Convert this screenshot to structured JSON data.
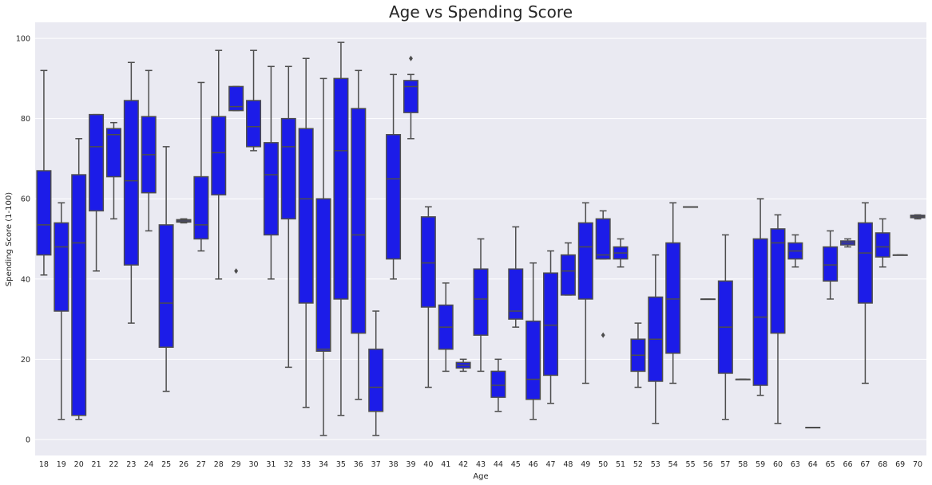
{
  "chart_data": {
    "type": "box",
    "title": "Age vs Spending Score",
    "xlabel": "Age",
    "ylabel": "Spending Score (1-100)",
    "ylim": [
      -4,
      104
    ],
    "yticks": [
      0,
      20,
      40,
      60,
      80,
      100
    ],
    "grid": true,
    "box_color": "#1c1ce8",
    "line_color": "#4d4d4d",
    "background": "#eaeaf2",
    "categories": [
      "18",
      "19",
      "20",
      "21",
      "22",
      "23",
      "24",
      "25",
      "26",
      "27",
      "28",
      "29",
      "30",
      "31",
      "32",
      "33",
      "34",
      "35",
      "36",
      "37",
      "38",
      "39",
      "40",
      "41",
      "42",
      "43",
      "44",
      "45",
      "46",
      "47",
      "48",
      "49",
      "50",
      "51",
      "52",
      "53",
      "54",
      "55",
      "56",
      "57",
      "58",
      "59",
      "60",
      "63",
      "64",
      "65",
      "66",
      "67",
      "68",
      "69",
      "70"
    ],
    "boxes": [
      {
        "age": "18",
        "min": 41,
        "q1": 46,
        "median": 53.5,
        "q3": 67,
        "max": 92,
        "outliers": []
      },
      {
        "age": "19",
        "min": 5,
        "q1": 32,
        "median": 48,
        "q3": 54,
        "max": 59,
        "outliers": []
      },
      {
        "age": "20",
        "min": 5,
        "q1": 6,
        "median": 49,
        "q3": 66,
        "max": 75,
        "outliers": []
      },
      {
        "age": "21",
        "min": 42,
        "q1": 57,
        "median": 73,
        "q3": 81,
        "max": 81,
        "outliers": []
      },
      {
        "age": "22",
        "min": 55,
        "q1": 65.5,
        "median": 76,
        "q3": 77.5,
        "max": 79,
        "outliers": []
      },
      {
        "age": "23",
        "min": 29,
        "q1": 43.5,
        "median": 64.5,
        "q3": 84.5,
        "max": 94,
        "outliers": []
      },
      {
        "age": "24",
        "min": 52,
        "q1": 61.5,
        "median": 71,
        "q3": 80.5,
        "max": 92,
        "outliers": []
      },
      {
        "age": "25",
        "min": 12,
        "q1": 23,
        "median": 34,
        "q3": 53.5,
        "max": 73,
        "outliers": []
      },
      {
        "age": "26",
        "min": 54,
        "q1": 54.2,
        "median": 54.5,
        "q3": 54.8,
        "max": 55,
        "outliers": []
      },
      {
        "age": "27",
        "min": 47,
        "q1": 50,
        "median": 53.5,
        "q3": 65.5,
        "max": 89,
        "outliers": []
      },
      {
        "age": "28",
        "min": 40,
        "q1": 61,
        "median": 71.5,
        "q3": 80.5,
        "max": 97,
        "outliers": []
      },
      {
        "age": "29",
        "min": 82,
        "q1": 82,
        "median": 83,
        "q3": 88,
        "max": 88,
        "outliers": [
          42
        ]
      },
      {
        "age": "30",
        "min": 72,
        "q1": 73,
        "median": 78,
        "q3": 84.5,
        "max": 97,
        "outliers": []
      },
      {
        "age": "31",
        "min": 40,
        "q1": 51,
        "median": 66,
        "q3": 74,
        "max": 93,
        "outliers": []
      },
      {
        "age": "32",
        "min": 18,
        "q1": 55,
        "median": 73,
        "q3": 80,
        "max": 93,
        "outliers": []
      },
      {
        "age": "33",
        "min": 8,
        "q1": 34,
        "median": 60,
        "q3": 77.5,
        "max": 95,
        "outliers": []
      },
      {
        "age": "34",
        "min": 1,
        "q1": 22,
        "median": 22.5,
        "q3": 60,
        "max": 90,
        "outliers": []
      },
      {
        "age": "35",
        "min": 6,
        "q1": 35,
        "median": 72,
        "q3": 90,
        "max": 99,
        "outliers": []
      },
      {
        "age": "36",
        "min": 10,
        "q1": 26.5,
        "median": 51,
        "q3": 82.5,
        "max": 92,
        "outliers": []
      },
      {
        "age": "37",
        "min": 1,
        "q1": 7,
        "median": 13,
        "q3": 22.5,
        "max": 32,
        "outliers": []
      },
      {
        "age": "38",
        "min": 40,
        "q1": 45,
        "median": 65,
        "q3": 76,
        "max": 91,
        "outliers": []
      },
      {
        "age": "39",
        "min": 75,
        "q1": 81.5,
        "median": 88,
        "q3": 89.5,
        "max": 91,
        "outliers": [
          95
        ]
      },
      {
        "age": "40",
        "min": 13,
        "q1": 33,
        "median": 44,
        "q3": 55.5,
        "max": 58,
        "outliers": []
      },
      {
        "age": "41",
        "min": 17,
        "q1": 22.5,
        "median": 28,
        "q3": 33.5,
        "max": 39,
        "outliers": []
      },
      {
        "age": "42",
        "min": 17,
        "q1": 17.8,
        "median": 18.5,
        "q3": 19.2,
        "max": 20,
        "outliers": []
      },
      {
        "age": "43",
        "min": 17,
        "q1": 26,
        "median": 35,
        "q3": 42.5,
        "max": 50,
        "outliers": []
      },
      {
        "age": "44",
        "min": 7,
        "q1": 10.5,
        "median": 13.5,
        "q3": 17,
        "max": 20,
        "outliers": []
      },
      {
        "age": "45",
        "min": 28,
        "q1": 30,
        "median": 32,
        "q3": 42.5,
        "max": 53,
        "outliers": []
      },
      {
        "age": "46",
        "min": 5,
        "q1": 10,
        "median": 15,
        "q3": 29.5,
        "max": 44,
        "outliers": []
      },
      {
        "age": "47",
        "min": 9,
        "q1": 16,
        "median": 28.5,
        "q3": 41.5,
        "max": 47,
        "outliers": []
      },
      {
        "age": "48",
        "min": 36,
        "q1": 36,
        "median": 42,
        "q3": 46,
        "max": 49,
        "outliers": []
      },
      {
        "age": "49",
        "min": 14,
        "q1": 35,
        "median": 48,
        "q3": 54,
        "max": 59,
        "outliers": []
      },
      {
        "age": "50",
        "min": 45,
        "q1": 45,
        "median": 46,
        "q3": 55,
        "max": 57,
        "outliers": [
          26
        ]
      },
      {
        "age": "51",
        "min": 43,
        "q1": 45,
        "median": 46.5,
        "q3": 48,
        "max": 50,
        "outliers": []
      },
      {
        "age": "52",
        "min": 13,
        "q1": 17,
        "median": 21,
        "q3": 25,
        "max": 29,
        "outliers": []
      },
      {
        "age": "53",
        "min": 4,
        "q1": 14.5,
        "median": 25,
        "q3": 35.5,
        "max": 46,
        "outliers": []
      },
      {
        "age": "54",
        "min": 14,
        "q1": 21.5,
        "median": 35,
        "q3": 49,
        "max": 59,
        "outliers": []
      },
      {
        "age": "55",
        "min": 58,
        "q1": 58,
        "median": 58,
        "q3": 58,
        "max": 58,
        "outliers": []
      },
      {
        "age": "56",
        "min": 35,
        "q1": 35,
        "median": 35,
        "q3": 35,
        "max": 35,
        "outliers": []
      },
      {
        "age": "57",
        "min": 5,
        "q1": 16.5,
        "median": 28,
        "q3": 39.5,
        "max": 51,
        "outliers": []
      },
      {
        "age": "58",
        "min": 15,
        "q1": 15,
        "median": 15,
        "q3": 15,
        "max": 15,
        "outliers": []
      },
      {
        "age": "59",
        "min": 11,
        "q1": 13.5,
        "median": 30.5,
        "q3": 50,
        "max": 60,
        "outliers": []
      },
      {
        "age": "60",
        "min": 4,
        "q1": 26.5,
        "median": 49,
        "q3": 52.5,
        "max": 56,
        "outliers": []
      },
      {
        "age": "63",
        "min": 43,
        "q1": 45,
        "median": 47,
        "q3": 49,
        "max": 51,
        "outliers": []
      },
      {
        "age": "64",
        "min": 3,
        "q1": 3,
        "median": 3,
        "q3": 3,
        "max": 3,
        "outliers": []
      },
      {
        "age": "65",
        "min": 35,
        "q1": 39.5,
        "median": 43.5,
        "q3": 48,
        "max": 52,
        "outliers": []
      },
      {
        "age": "66",
        "min": 48,
        "q1": 48.5,
        "median": 49,
        "q3": 49.5,
        "max": 50,
        "outliers": []
      },
      {
        "age": "67",
        "min": 14,
        "q1": 34,
        "median": 46.5,
        "q3": 54,
        "max": 59,
        "outliers": []
      },
      {
        "age": "68",
        "min": 43,
        "q1": 45.5,
        "median": 48,
        "q3": 51.5,
        "max": 55,
        "outliers": []
      },
      {
        "age": "69",
        "min": 46,
        "q1": 46,
        "median": 46,
        "q3": 46,
        "max": 46,
        "outliers": []
      },
      {
        "age": "70",
        "min": 55,
        "q1": 55.3,
        "median": 55.6,
        "q3": 55.9,
        "max": 56,
        "outliers": []
      }
    ]
  }
}
